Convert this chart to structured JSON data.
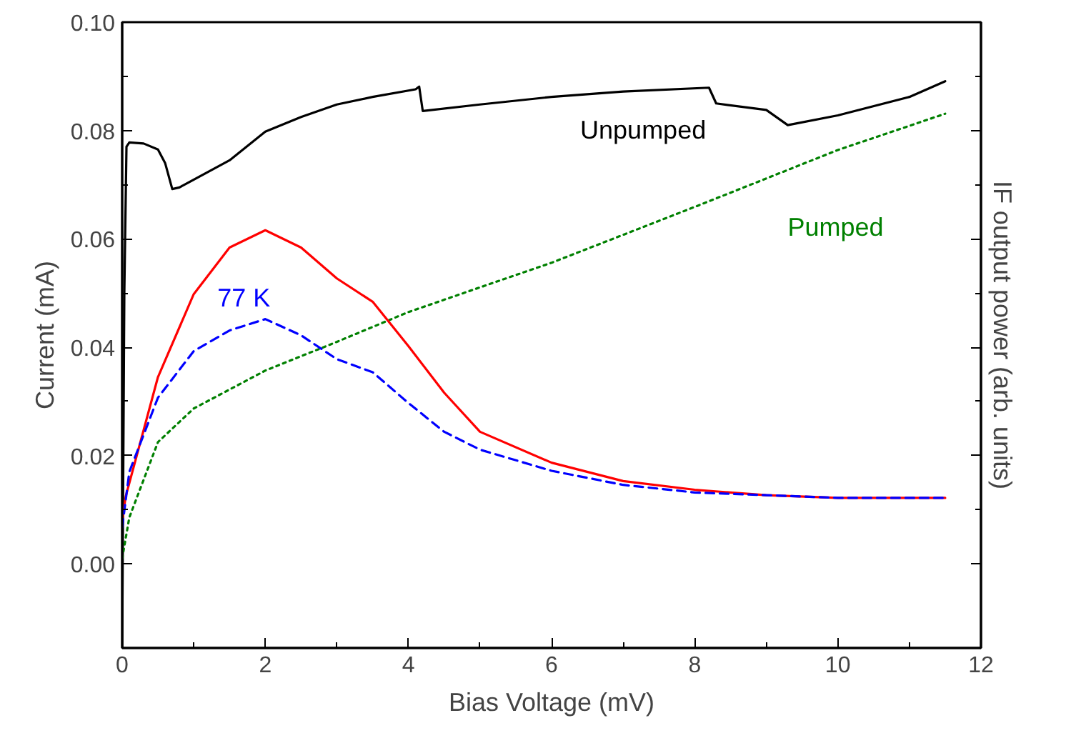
{
  "chart_data": {
    "type": "line",
    "xlabel": "Bias Voltage (mV)",
    "ylabel": "Current (mA)",
    "y2label": "IF output power (arb. units)",
    "xlim": [
      0,
      12
    ],
    "ylim": [
      -0.0155,
      0.1
    ],
    "xticks": [
      0,
      {
        "value": 1,
        "label": null
      },
      2,
      {
        "value": 3,
        "label": null
      },
      4,
      {
        "value": 5,
        "label": null
      },
      6,
      {
        "value": 7,
        "label": null
      },
      8,
      {
        "value": 9,
        "label": null
      },
      10,
      {
        "value": 11,
        "label": null
      },
      12
    ],
    "yticks": [
      {
        "value": 0,
        "label": "0.00"
      },
      {
        "value": 0.01,
        "label": null
      },
      {
        "value": 0.02,
        "label": "0.02"
      },
      {
        "value": 0.03,
        "label": null
      },
      {
        "value": 0.04,
        "label": "0.04"
      },
      {
        "value": 0.05,
        "label": null
      },
      {
        "value": 0.06,
        "label": "0.06"
      },
      {
        "value": 0.07,
        "label": null
      },
      {
        "value": 0.08,
        "label": "0.08"
      },
      {
        "value": 0.09,
        "label": null
      },
      {
        "value": 0.1,
        "label": "0.10"
      }
    ],
    "grid": false,
    "marker": "none",
    "series": [
      {
        "name": "Unpumped",
        "color": "#000000",
        "line_style": "solid",
        "x": [
          0,
          0.03,
          0.06,
          0.1,
          0.3,
          0.5,
          0.6,
          0.7,
          0.8,
          1.5,
          2,
          2.5,
          3,
          3.5,
          4.1,
          4.15,
          4.2,
          5,
          6,
          7,
          8.2,
          8.3,
          9,
          9.3,
          10,
          11,
          11.5
        ],
        "values": [
          -0.0155,
          0.05,
          0.077,
          0.0778,
          0.0776,
          0.0765,
          0.074,
          0.0692,
          0.0695,
          0.0745,
          0.0798,
          0.0825,
          0.0848,
          0.0862,
          0.0876,
          0.0881,
          0.0836,
          0.0848,
          0.0862,
          0.0872,
          0.0879,
          0.085,
          0.0838,
          0.081,
          0.0828,
          0.0862,
          0.0891
        ]
      },
      {
        "name": "Pumped",
        "color": "#008000",
        "line_style": "dotted",
        "x": [
          0,
          0.1,
          0.5,
          1,
          2,
          3,
          4,
          6,
          8,
          10,
          11.5
        ],
        "values": [
          0.001,
          0.0086,
          0.0225,
          0.0287,
          0.0357,
          0.041,
          0.0465,
          0.0556,
          0.0659,
          0.0764,
          0.0831
        ]
      },
      {
        "color": "#ff0000",
        "line_style": "solid",
        "x": [
          0,
          0.05,
          0.5,
          1,
          1.5,
          2,
          2.5,
          3,
          3.5,
          4,
          4.5,
          5,
          6,
          7,
          8,
          9,
          10,
          11.5
        ],
        "values": [
          0.008,
          0.0125,
          0.0345,
          0.0498,
          0.0584,
          0.0616,
          0.0584,
          0.0527,
          0.0484,
          0.0402,
          0.0316,
          0.0244,
          0.0187,
          0.0153,
          0.0137,
          0.0127,
          0.0122,
          0.0122
        ]
      },
      {
        "name": "77 K",
        "color": "#0000ff",
        "line_style": "dashed",
        "x": [
          0,
          0.1,
          0.5,
          1,
          1.5,
          2,
          2.5,
          3,
          3.5,
          4,
          4.5,
          5,
          6,
          7,
          8,
          9,
          10,
          11.5
        ],
        "values": [
          0.0067,
          0.017,
          0.0307,
          0.0393,
          0.0431,
          0.0452,
          0.0422,
          0.0378,
          0.0354,
          0.0297,
          0.0244,
          0.0211,
          0.0172,
          0.0146,
          0.0132,
          0.0127,
          0.0122,
          0.0122
        ]
      }
    ]
  }
}
